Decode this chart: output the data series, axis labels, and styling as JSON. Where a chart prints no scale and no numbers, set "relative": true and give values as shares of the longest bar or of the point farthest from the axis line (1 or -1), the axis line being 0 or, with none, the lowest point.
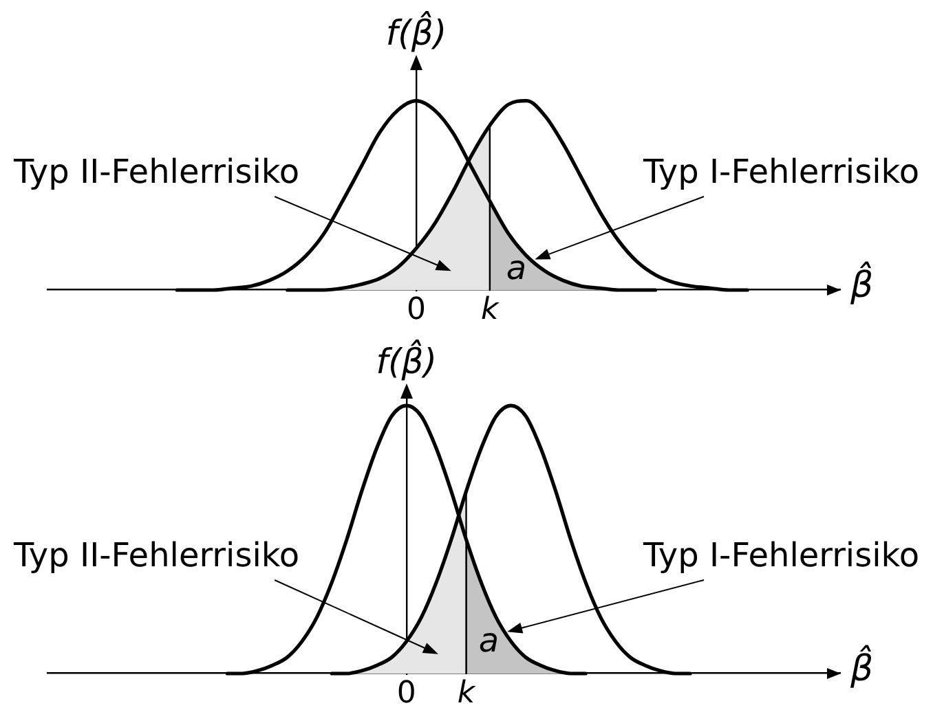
{
  "chart_data": [
    {
      "type": "line",
      "xlabel": "β̂",
      "ylabel": "f(β̂)",
      "relative": true,
      "categories": [
        null,
        null,
        null,
        null,
        null,
        null,
        null,
        null,
        null,
        null,
        null,
        null,
        null,
        null,
        null,
        null,
        null,
        null,
        null,
        null,
        "0",
        null,
        null,
        null,
        "k",
        null,
        null,
        null,
        null,
        null,
        null,
        null,
        null,
        null,
        null,
        null,
        null,
        null,
        null,
        null,
        null,
        null,
        null,
        null
      ],
      "series": [
        {
          "color": "#000000",
          "values": [
            null,
            null,
            null,
            null,
            null,
            null,
            null,
            0,
            0,
            0,
            0.01,
            0.02,
            0.05,
            0.1,
            0.18,
            0.3,
            0.47,
            0.65,
            0.83,
            0.95,
            1,
            0.95,
            0.83,
            0.65,
            0.47,
            0.3,
            0.18,
            0.1,
            0.05,
            0.02,
            0.01,
            0,
            0,
            0,
            null,
            null,
            null,
            null,
            null,
            null,
            null,
            null,
            null,
            null
          ]
        },
        {
          "color": "#000000",
          "values": [
            null,
            null,
            null,
            null,
            null,
            null,
            null,
            null,
            null,
            null,
            null,
            null,
            null,
            0,
            0,
            0,
            0.01,
            0.03,
            0.06,
            0.12,
            0.22,
            0.35,
            0.52,
            0.71,
            0.87,
            0.98,
            1,
            0.92,
            0.77,
            0.59,
            0.41,
            0.26,
            0.15,
            0.08,
            0.04,
            0.02,
            0.01,
            0,
            0,
            null,
            null,
            null,
            null,
            null
          ]
        },
        {
          "type": "area",
          "name": "Typ II-Fehlerrisiko",
          "color": "#e6e6e6",
          "values": [
            null,
            null,
            null,
            null,
            null,
            null,
            null,
            null,
            null,
            null,
            null,
            null,
            null,
            0,
            0,
            0,
            0.01,
            0.03,
            0.06,
            0.12,
            0.22,
            0.35,
            0.52,
            0.71,
            0.87,
            null,
            null,
            null,
            null,
            null,
            null,
            null,
            null,
            null,
            null,
            null,
            null,
            null,
            null,
            null,
            null,
            null,
            null,
            null
          ]
        },
        {
          "type": "area",
          "name": "Typ I-Fehlerrisiko",
          "color": "#c4c4c4",
          "values": [
            null,
            null,
            null,
            null,
            null,
            null,
            null,
            null,
            null,
            null,
            null,
            null,
            null,
            null,
            null,
            null,
            null,
            null,
            null,
            null,
            null,
            null,
            null,
            null,
            0.47,
            0.3,
            0.18,
            0.1,
            0.05,
            0.02,
            0.01,
            0,
            0,
            0,
            null,
            null,
            null,
            null,
            null,
            null,
            null,
            null,
            null,
            null
          ]
        }
      ],
      "annotations": [
        "a"
      ]
    },
    {
      "type": "line",
      "xlabel": "β̂",
      "ylabel": "f(β̂)",
      "relative": true,
      "categories": [
        null,
        null,
        null,
        null,
        null,
        null,
        null,
        null,
        null,
        null,
        null,
        null,
        null,
        null,
        null,
        null,
        null,
        null,
        null,
        null,
        null,
        null,
        null,
        null,
        "0",
        null,
        null,
        null,
        "k",
        null,
        null,
        null,
        null,
        null,
        null,
        null,
        null,
        null,
        null,
        null,
        null,
        null,
        null,
        null,
        null,
        null,
        null,
        null,
        null,
        null,
        null,
        null,
        null,
        null
      ],
      "series": [
        {
          "color": "#000000",
          "values": [
            null,
            null,
            null,
            null,
            null,
            null,
            null,
            null,
            null,
            null,
            null,
            null,
            0,
            0,
            0.01,
            0.03,
            0.06,
            0.12,
            0.21,
            0.34,
            0.5,
            0.68,
            0.84,
            0.96,
            1,
            0.96,
            0.84,
            0.68,
            0.5,
            0.34,
            0.21,
            0.12,
            0.06,
            0.03,
            0.01,
            0,
            0,
            null,
            null,
            null,
            null,
            null,
            null,
            null,
            null,
            null,
            null,
            null,
            null,
            null,
            null,
            null,
            null,
            null
          ]
        },
        {
          "color": "#000000",
          "values": [
            null,
            null,
            null,
            null,
            null,
            null,
            null,
            null,
            null,
            null,
            null,
            null,
            null,
            null,
            null,
            null,
            null,
            null,
            null,
            0,
            0,
            0.01,
            0.03,
            0.06,
            0.12,
            0.21,
            0.34,
            0.5,
            0.68,
            0.84,
            0.96,
            1,
            0.96,
            0.84,
            0.68,
            0.5,
            0.34,
            0.21,
            0.12,
            0.06,
            0.03,
            0.01,
            0,
            0,
            null,
            null,
            null,
            null,
            null,
            null,
            null,
            null,
            null,
            null
          ]
        },
        {
          "type": "area",
          "name": "Typ II-Fehlerrisiko",
          "color": "#e6e6e6",
          "values": [
            null,
            null,
            null,
            null,
            null,
            null,
            null,
            null,
            null,
            null,
            null,
            null,
            null,
            null,
            null,
            null,
            null,
            null,
            null,
            0,
            0,
            0.01,
            0.03,
            0.06,
            0.12,
            0.21,
            0.34,
            0.5,
            0.68,
            null,
            null,
            null,
            null,
            null,
            null,
            null,
            null,
            null,
            null,
            null,
            null,
            null,
            null,
            null,
            null,
            null,
            null,
            null,
            null,
            null,
            null,
            null,
            null,
            null
          ]
        },
        {
          "type": "area",
          "name": "Typ I-Fehlerrisiko",
          "color": "#c4c4c4",
          "values": [
            null,
            null,
            null,
            null,
            null,
            null,
            null,
            null,
            null,
            null,
            null,
            null,
            null,
            null,
            null,
            null,
            null,
            null,
            null,
            null,
            null,
            null,
            null,
            null,
            null,
            null,
            null,
            null,
            0.5,
            0.34,
            0.21,
            0.12,
            0.06,
            0.03,
            0.01,
            0,
            0,
            null,
            null,
            null,
            null,
            null,
            null,
            null,
            null,
            null,
            null,
            null,
            null,
            null,
            null,
            null,
            null,
            null
          ]
        }
      ],
      "annotations": [
        "a"
      ]
    }
  ]
}
